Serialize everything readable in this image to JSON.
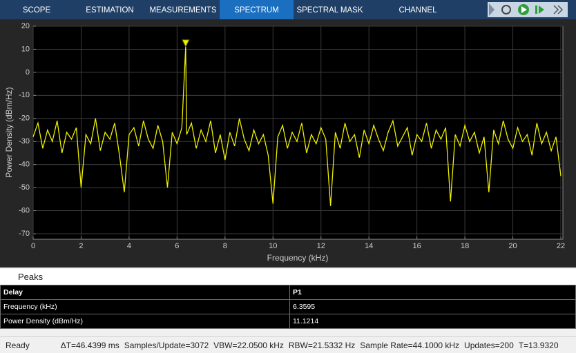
{
  "toolbar": {
    "tabs": [
      "SCOPE",
      "ESTIMATION",
      "MEASUREMENTS",
      "SPECTRUM",
      "SPECTRAL MASK",
      "CHANNEL MEASUREMENTS"
    ],
    "active_index": 3
  },
  "chart_data": {
    "type": "line",
    "xlabel": "Frequency (kHz)",
    "ylabel": "Power Density (dBm/Hz)",
    "color": "#f0f000",
    "x": [
      0.0,
      0.2,
      0.4,
      0.6,
      0.8,
      1.0,
      1.2,
      1.4,
      1.6,
      1.8,
      2.0,
      2.2,
      2.4,
      2.6,
      2.8,
      3.0,
      3.2,
      3.4,
      3.6,
      3.8,
      4.0,
      4.2,
      4.4,
      4.6,
      4.8,
      5.0,
      5.2,
      5.4,
      5.6,
      5.8,
      6.0,
      6.2,
      6.3595,
      6.4,
      6.6,
      6.8,
      7.0,
      7.2,
      7.4,
      7.6,
      7.8,
      8.0,
      8.2,
      8.4,
      8.6,
      8.8,
      9.0,
      9.2,
      9.4,
      9.6,
      9.8,
      10.0,
      10.2,
      10.4,
      10.6,
      10.8,
      11.0,
      11.2,
      11.4,
      11.6,
      11.8,
      12.0,
      12.2,
      12.4,
      12.6,
      12.8,
      13.0,
      13.2,
      13.4,
      13.6,
      13.8,
      14.0,
      14.2,
      14.4,
      14.6,
      14.8,
      15.0,
      15.2,
      15.4,
      15.6,
      15.8,
      16.0,
      16.2,
      16.4,
      16.6,
      16.8,
      17.0,
      17.2,
      17.4,
      17.6,
      17.8,
      18.0,
      18.2,
      18.4,
      18.6,
      18.8,
      19.0,
      19.2,
      19.4,
      19.6,
      19.8,
      20.0,
      20.2,
      20.4,
      20.6,
      20.8,
      21.0,
      21.2,
      21.4,
      21.6,
      21.8,
      22.0
    ],
    "values": [
      -28,
      -22,
      -33,
      -25,
      -30,
      -21,
      -35,
      -26,
      -29,
      -24,
      -50,
      -27,
      -31,
      -20,
      -34,
      -26,
      -29,
      -22,
      -36,
      -52,
      -27,
      -24,
      -32,
      -21,
      -29,
      -33,
      -23,
      -30,
      -50,
      -26,
      -31,
      -24,
      11.1214,
      -27,
      -22,
      -33,
      -25,
      -30,
      -21,
      -35,
      -27,
      -38,
      -26,
      -32,
      -20,
      -29,
      -34,
      -25,
      -31,
      -27,
      -36,
      -57,
      -28,
      -23,
      -33,
      -26,
      -30,
      -22,
      -35,
      -27,
      -31,
      -24,
      -29,
      -58,
      -26,
      -33,
      -22,
      -30,
      -27,
      -37,
      -25,
      -31,
      -23,
      -29,
      -34,
      -26,
      -21,
      -32,
      -28,
      -24,
      -36,
      -27,
      -30,
      -22,
      -33,
      -25,
      -29,
      -24,
      -56,
      -27,
      -32,
      -23,
      -30,
      -26,
      -35,
      -28,
      -52,
      -25,
      -31,
      -21,
      -29,
      -33,
      -24,
      -30,
      -27,
      -36,
      -22,
      -31,
      -26,
      -34,
      -28,
      -45
    ],
    "markers": [
      {
        "x": 6.3595,
        "y": 11.1214
      }
    ],
    "xlim": [
      0,
      22.086
    ],
    "xticks": [
      0,
      2,
      4,
      6,
      8,
      10,
      12,
      14,
      16,
      18,
      20,
      22
    ],
    "ylim": [
      -72.4,
      20
    ],
    "yticks": [
      -70,
      -60,
      -50,
      -40,
      -30,
      -20,
      -10,
      0,
      10,
      20
    ],
    "grid": true
  },
  "peaks": {
    "title": "Peaks",
    "columns": [
      "Delay",
      "P1"
    ],
    "rows": [
      [
        "Frequency (kHz)",
        "6.3595"
      ],
      [
        "Power Density (dBm/Hz)",
        "11.1214"
      ]
    ]
  },
  "status": {
    "state": "Ready",
    "items": [
      "ΔT=46.4399 ms",
      "Samples/Update=3072",
      "VBW=22.0500 kHz",
      "RBW=21.5332 Hz",
      "Sample Rate=44.1000 kHz",
      "Updates=200",
      "T=13.9320"
    ]
  }
}
